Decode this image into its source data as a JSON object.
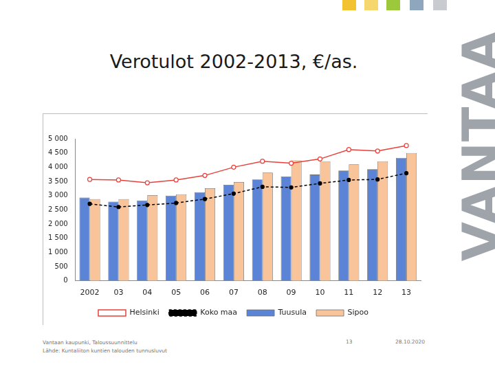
{
  "chart_data": {
    "type": "bar",
    "title": "Verotulot 2002-2013, €/as.",
    "categories": [
      "2002",
      "03",
      "04",
      "05",
      "06",
      "07",
      "08",
      "09",
      "10",
      "11",
      "12",
      "13"
    ],
    "series": [
      {
        "name": "Tuusula",
        "type": "bar",
        "color": "#5b84d6",
        "values": [
          2930,
          2790,
          2830,
          3000,
          3120,
          3380,
          3570,
          3670,
          3740,
          3880,
          3930,
          4330
        ]
      },
      {
        "name": "Sipoo",
        "type": "bar",
        "color": "#f9c49a",
        "values": [
          2880,
          2880,
          3020,
          3050,
          3260,
          3480,
          3810,
          4240,
          4210,
          4100,
          4210,
          4500
        ]
      },
      {
        "name": "Helsinki",
        "type": "line",
        "color": "#e8403a",
        "marker": "open_circle",
        "line_style": "solid",
        "values": [
          3570,
          3550,
          3450,
          3550,
          3710,
          4000,
          4210,
          4140,
          4290,
          4620,
          4570,
          4760
        ]
      },
      {
        "name": "Koko maa",
        "type": "line",
        "color": "#000000",
        "marker": "circle",
        "line_style": "dashed",
        "values": [
          2710,
          2600,
          2670,
          2740,
          2880,
          3070,
          3310,
          3290,
          3430,
          3550,
          3570,
          3790
        ]
      }
    ],
    "ylim": [
      0,
      5000
    ],
    "yticks": [
      0,
      500,
      {
        "value": 1000,
        "label": "1 000"
      },
      {
        "value": 1500,
        "label": "1 500"
      },
      {
        "value": 2000,
        "label": "2 000"
      },
      {
        "value": 2500,
        "label": "2 500"
      },
      {
        "value": 3000,
        "label": "3 000"
      },
      {
        "value": 3500,
        "label": "3 500"
      },
      {
        "value": 4000,
        "label": "4 000"
      },
      {
        "value": 4500,
        "label": "4 500"
      },
      {
        "value": 5000,
        "label": "5 000"
      }
    ],
    "grid": false,
    "legend": "bottom"
  },
  "slide": {
    "logo": "VANTAA",
    "footer": [
      "Vantaan kaupunki, Taloussuunnittelu",
      "Lähde: Kuntaliiton kuntien talouden tunnusluvut"
    ],
    "page_number": 13,
    "date": "28.10.2020"
  }
}
